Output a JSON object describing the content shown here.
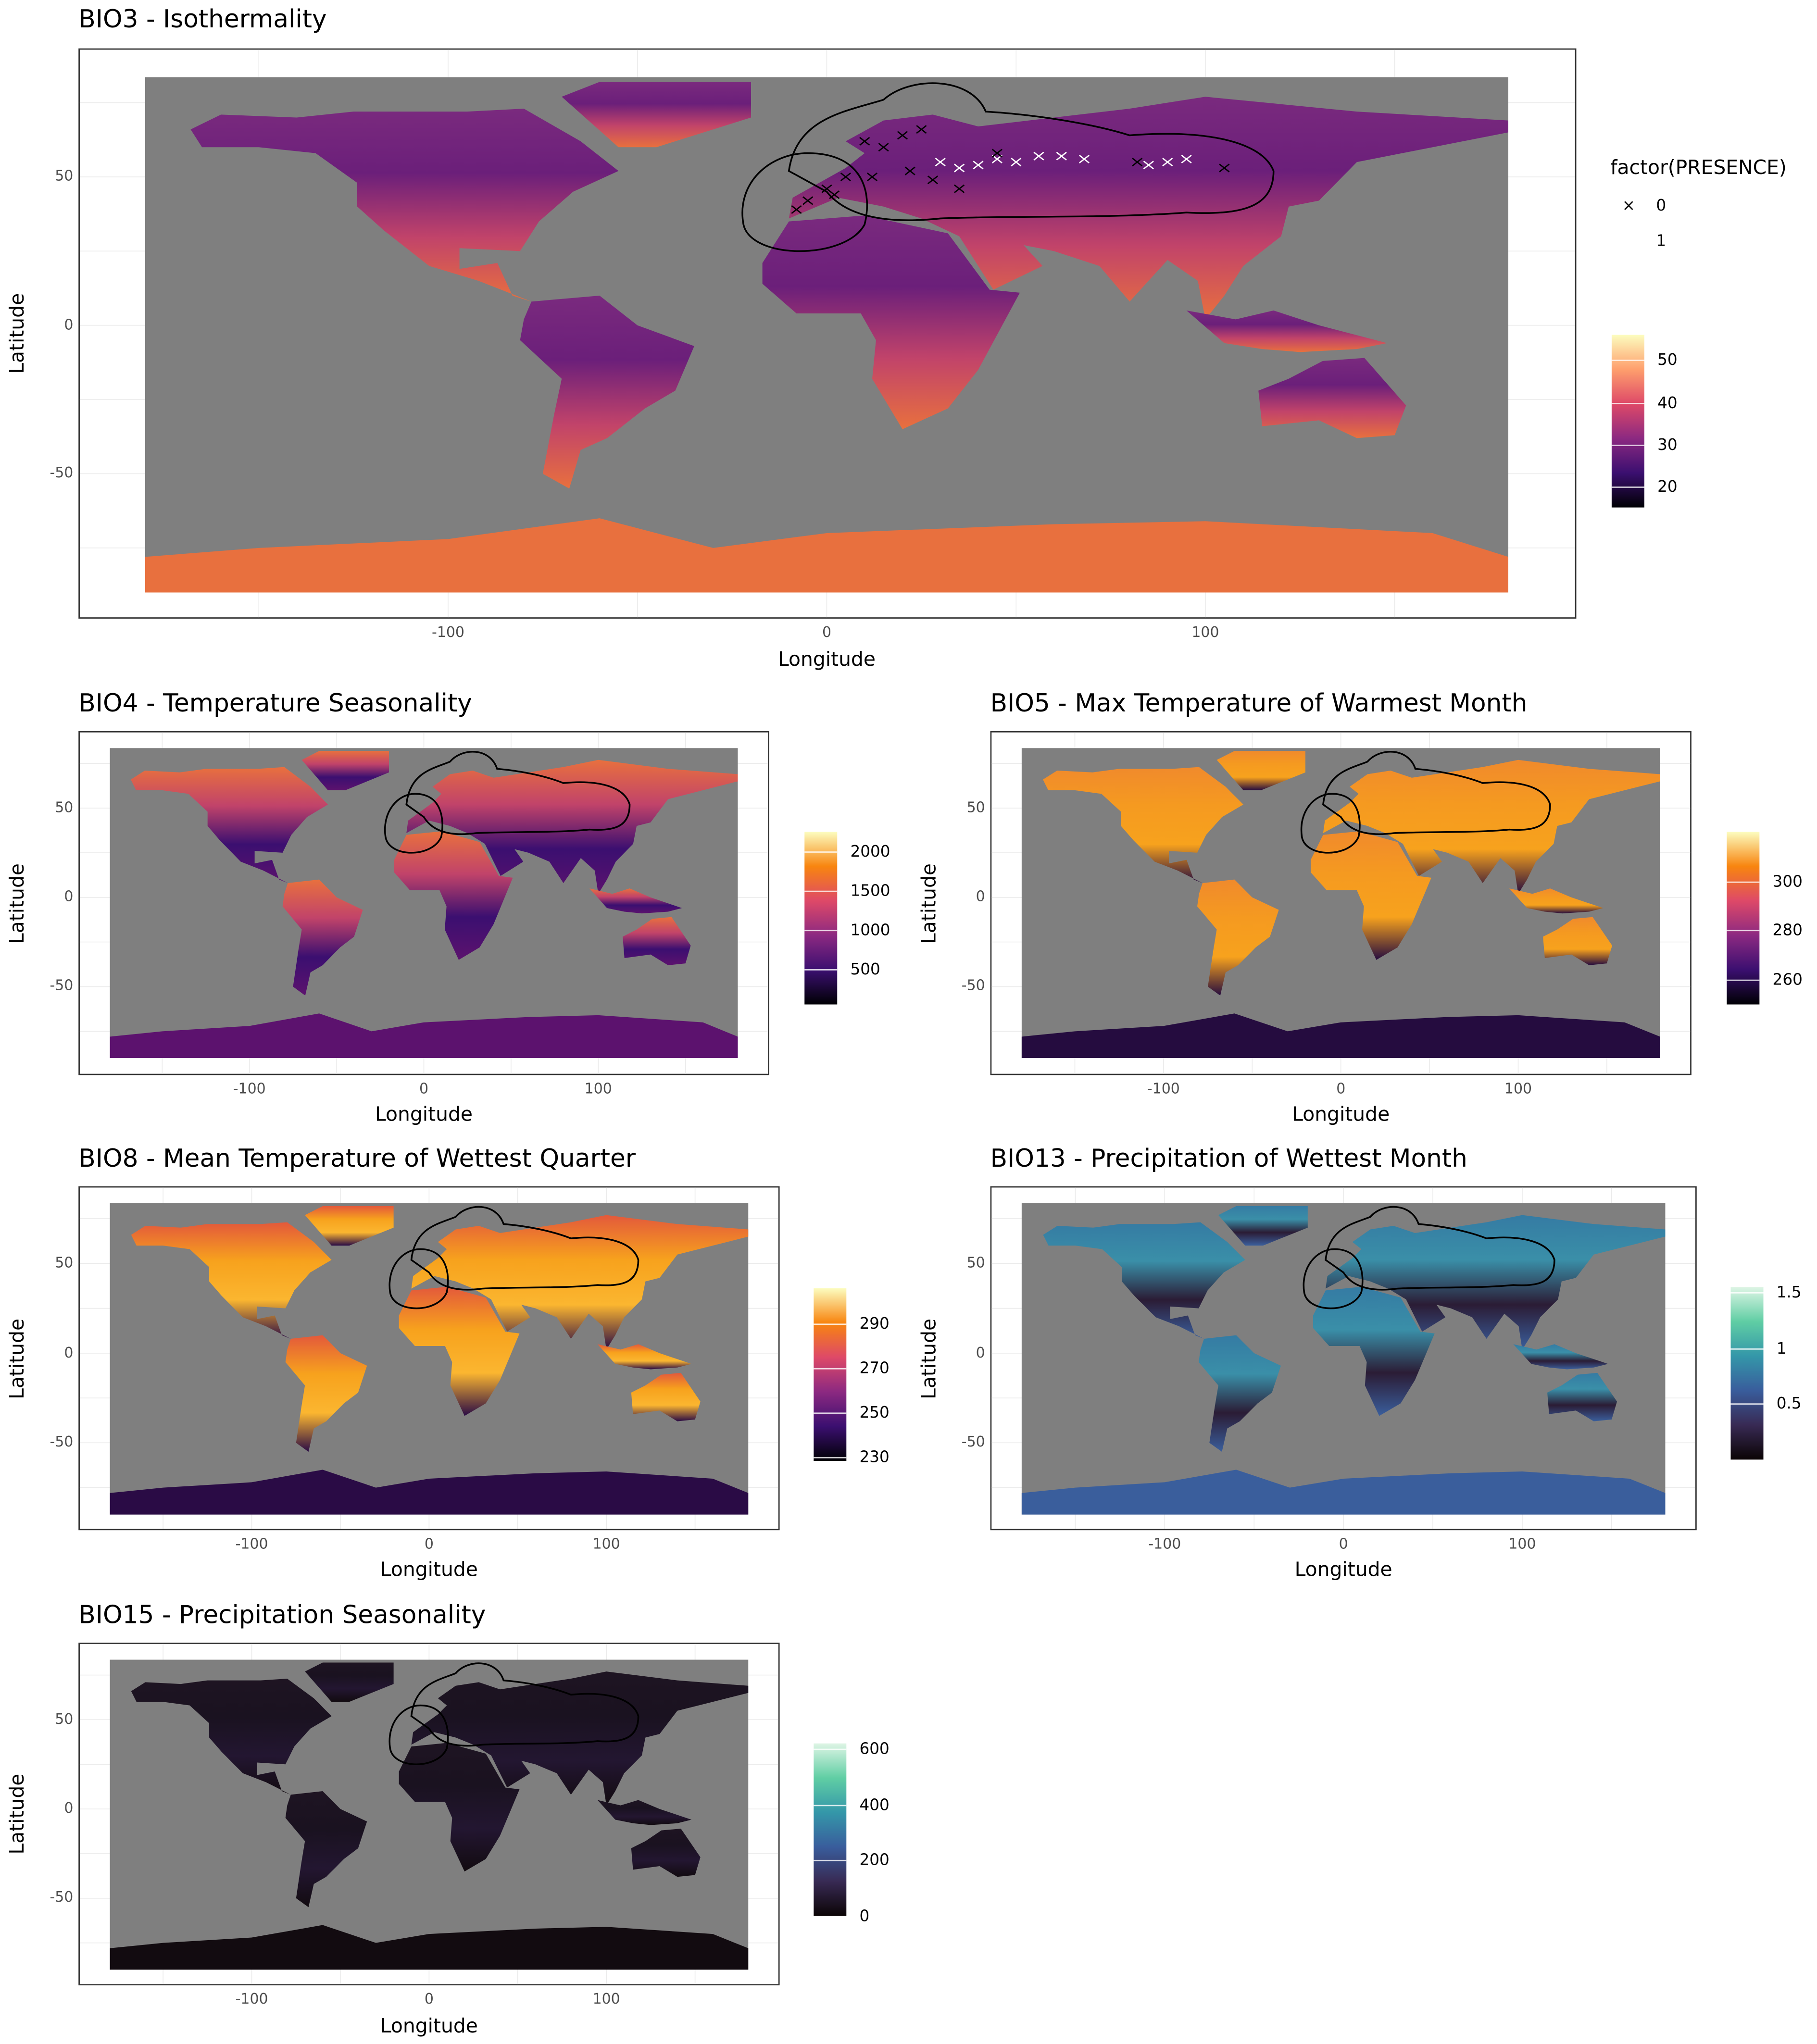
{
  "chart_data": [
    {
      "id": "bio3",
      "type": "heatmap",
      "title": "BIO3 - Isothermality",
      "xlabel": "Longitude",
      "ylabel": "Latitude",
      "xticks": [
        -100,
        0,
        100
      ],
      "yticks": [
        50,
        0,
        -50
      ],
      "xlim": [
        -180,
        180
      ],
      "ylim": [
        -90,
        83.6
      ],
      "colorbar": {
        "ticks": [
          50,
          40,
          30,
          20
        ],
        "range": [
          15,
          56
        ],
        "colors": [
          "#000004",
          "#3b0f70",
          "#8c2981",
          "#de4968",
          "#fe9f6d",
          "#fcfdbf"
        ]
      },
      "land_colors": [
        "#7a2a7e",
        "#6b1f7a",
        "#c1436a",
        "#e8703e"
      ],
      "shape_legend": {
        "title": "factor(PRESENCE)",
        "items": [
          {
            "label": "0",
            "symbol": "×",
            "color": "#000000"
          },
          {
            "label": "1",
            "symbol": "×",
            "color": "#ffffff"
          }
        ]
      },
      "presence_points": [
        {
          "lon": 30,
          "lat": 55,
          "presence": 1
        },
        {
          "lon": 35,
          "lat": 53,
          "presence": 1
        },
        {
          "lon": 40,
          "lat": 54,
          "presence": 1
        },
        {
          "lon": 45,
          "lat": 56,
          "presence": 1
        },
        {
          "lon": 50,
          "lat": 55,
          "presence": 1
        },
        {
          "lon": 56,
          "lat": 57,
          "presence": 1
        },
        {
          "lon": 62,
          "lat": 57,
          "presence": 1
        },
        {
          "lon": 68,
          "lat": 56,
          "presence": 1
        },
        {
          "lon": 85,
          "lat": 54,
          "presence": 1
        },
        {
          "lon": 90,
          "lat": 55,
          "presence": 1
        },
        {
          "lon": 95,
          "lat": 56,
          "presence": 1
        },
        {
          "lon": 10,
          "lat": 62,
          "presence": 0
        },
        {
          "lon": 15,
          "lat": 60,
          "presence": 0
        },
        {
          "lon": 20,
          "lat": 64,
          "presence": 0
        },
        {
          "lon": 25,
          "lat": 66,
          "presence": 0
        },
        {
          "lon": 5,
          "lat": 50,
          "presence": 0
        },
        {
          "lon": 0,
          "lat": 46,
          "presence": 0
        },
        {
          "lon": -5,
          "lat": 42,
          "presence": 0
        },
        {
          "lon": -8,
          "lat": 39,
          "presence": 0
        },
        {
          "lon": 2,
          "lat": 44,
          "presence": 0
        },
        {
          "lon": 12,
          "lat": 50,
          "presence": 0
        },
        {
          "lon": 22,
          "lat": 52,
          "presence": 0
        },
        {
          "lon": 28,
          "lat": 49,
          "presence": 0
        },
        {
          "lon": 35,
          "lat": 46,
          "presence": 0
        },
        {
          "lon": 45,
          "lat": 58,
          "presence": 0
        },
        {
          "lon": 82,
          "lat": 55,
          "presence": 0
        },
        {
          "lon": 105,
          "lat": 53,
          "presence": 0
        }
      ]
    },
    {
      "id": "bio4",
      "type": "heatmap",
      "title": "BIO4 - Temperature Seasonality",
      "xlabel": "Longitude",
      "ylabel": "Latitude",
      "xticks": [
        -100,
        0,
        100
      ],
      "yticks": [
        50,
        0,
        -50
      ],
      "xlim": [
        -180,
        180
      ],
      "ylim": [
        -90,
        83.6
      ],
      "colorbar": {
        "ticks": [
          2000,
          1500,
          1000,
          500
        ],
        "range": [
          50,
          2250
        ],
        "colors": [
          "#000004",
          "#3b0f70",
          "#8c2981",
          "#de4968",
          "#f8850f",
          "#fcfdbf"
        ]
      },
      "land_colors": [
        "#e8703e",
        "#c1436a",
        "#3b0f70",
        "#5c126e"
      ]
    },
    {
      "id": "bio5",
      "type": "heatmap",
      "title": "BIO5 - Max Temperature of Warmest Month",
      "xlabel": "Longitude",
      "ylabel": "Latitude",
      "xticks": [
        -100,
        0,
        100
      ],
      "yticks": [
        50,
        0,
        -50
      ],
      "xlim": [
        -180,
        180
      ],
      "ylim": [
        -90,
        83.6
      ],
      "colorbar": {
        "ticks": [
          300,
          280,
          260
        ],
        "range": [
          250,
          320
        ],
        "colors": [
          "#000004",
          "#3b0f70",
          "#8c2981",
          "#de4968",
          "#f8850f",
          "#fcfdbf"
        ]
      },
      "land_colors": [
        "#f08a2c",
        "#f59a20",
        "#f7a21d",
        "#250c3f"
      ]
    },
    {
      "id": "bio8",
      "type": "heatmap",
      "title": "BIO8 - Mean Temperature of Wettest Quarter",
      "xlabel": "Longitude",
      "ylabel": "Latitude",
      "xticks": [
        -100,
        0,
        100
      ],
      "yticks": [
        50,
        0,
        -50
      ],
      "xlim": [
        -180,
        180
      ],
      "ylim": [
        -90,
        83.6
      ],
      "colorbar": {
        "ticks": [
          290,
          270,
          250,
          230
        ],
        "range": [
          228,
          306
        ],
        "colors": [
          "#000004",
          "#3b0f70",
          "#8c2981",
          "#de4968",
          "#f8850f",
          "#fcfdbf"
        ]
      },
      "land_colors": [
        "#e3593b",
        "#f7a21d",
        "#fbb630",
        "#2a0b45"
      ]
    },
    {
      "id": "bio13",
      "type": "heatmap",
      "title": "BIO13 - Precipitation of Wettest Month",
      "xlabel": "Longitude",
      "ylabel": "Latitude",
      "xticks": [
        -100,
        0,
        100
      ],
      "yticks": [
        50,
        0,
        -50
      ],
      "xlim": [
        -180,
        180
      ],
      "ylim": [
        -90,
        83.6
      ],
      "colorbar": {
        "ticks": [
          1.5,
          1.0,
          0.5
        ],
        "range": [
          0,
          1.55
        ],
        "colors": [
          "#0b0405",
          "#382a54",
          "#395d9c",
          "#3497a9",
          "#60cea4",
          "#def5e5"
        ]
      },
      "land_colors": [
        "#357ba3",
        "#3a8fa8",
        "#2b1c35",
        "#3a5e9c"
      ]
    },
    {
      "id": "bio15",
      "type": "heatmap",
      "title": "BIO15 - Precipitation Seasonality",
      "xlabel": "Longitude",
      "ylabel": "Latitude",
      "xticks": [
        -100,
        0,
        100
      ],
      "yticks": [
        50,
        0,
        -50
      ],
      "xlim": [
        -180,
        180
      ],
      "ylim": [
        -90,
        83.6
      ],
      "colorbar": {
        "ticks": [
          600,
          400,
          200,
          0
        ],
        "range": [
          0,
          620
        ],
        "colors": [
          "#0b0405",
          "#382a54",
          "#395d9c",
          "#3497a9",
          "#60cea4",
          "#def5e5"
        ]
      },
      "land_colors": [
        "#1e1422",
        "#1a1220",
        "#231631",
        "#120b10"
      ]
    }
  ],
  "ocean_color": "#7f7f7f"
}
